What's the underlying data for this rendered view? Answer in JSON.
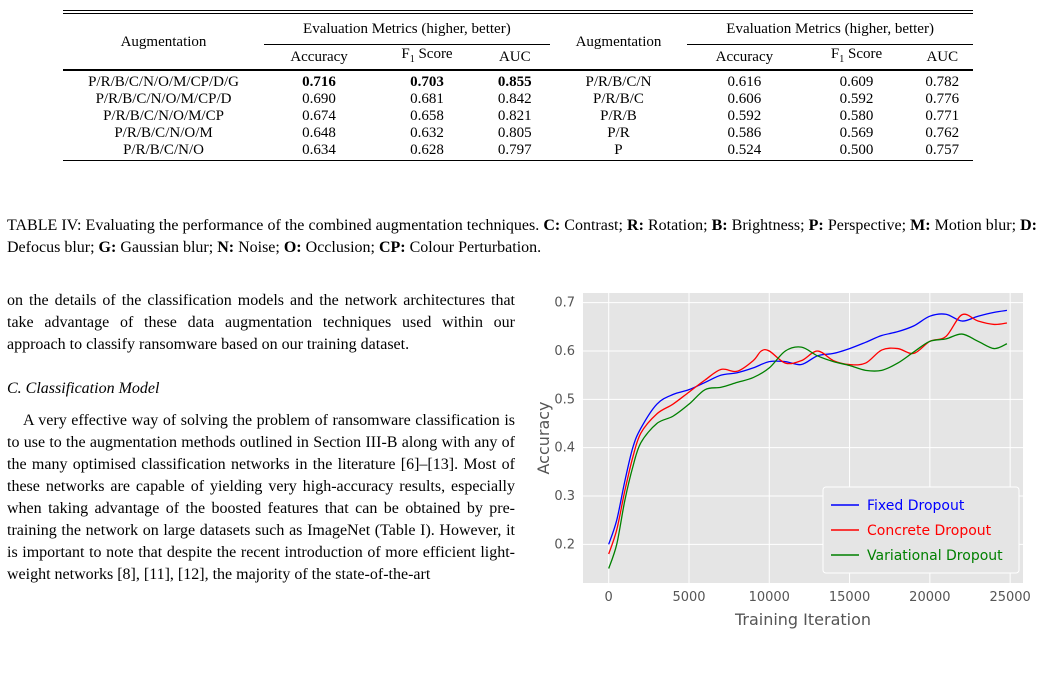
{
  "table": {
    "left_header": "Augmentation",
    "right_header": "Augmentation",
    "group_header_left": "Evaluation Metrics (higher, better)",
    "group_header_right": "Evaluation Metrics (higher, better)",
    "col_accuracy": "Accuracy",
    "col_f1_main": "F",
    "col_f1_sub": "1",
    "col_f1_rest": " Score",
    "col_auc": "AUC",
    "rows": [
      {
        "aug_l": "P/R/B/C/N/O/M/CP/D/G",
        "acc_l": "0.716",
        "f1_l": "0.703",
        "auc_l": "0.855",
        "aug_r": "P/R/B/C/N",
        "acc_r": "0.616",
        "f1_r": "0.609",
        "auc_r": "0.782"
      },
      {
        "aug_l": "P/R/B/C/N/O/M/CP/D",
        "acc_l": "0.690",
        "f1_l": "0.681",
        "auc_l": "0.842",
        "aug_r": "P/R/B/C",
        "acc_r": "0.606",
        "f1_r": "0.592",
        "auc_r": "0.776"
      },
      {
        "aug_l": "P/R/B/C/N/O/M/CP",
        "acc_l": "0.674",
        "f1_l": "0.658",
        "auc_l": "0.821",
        "aug_r": "P/R/B",
        "acc_r": "0.592",
        "f1_r": "0.580",
        "auc_r": "0.771"
      },
      {
        "aug_l": "P/R/B/C/N/O/M",
        "acc_l": "0.648",
        "f1_l": "0.632",
        "auc_l": "0.805",
        "aug_r": "P/R",
        "acc_r": "0.586",
        "f1_r": "0.569",
        "auc_r": "0.762"
      },
      {
        "aug_l": "P/R/B/C/N/O",
        "acc_l": "0.634",
        "f1_l": "0.628",
        "auc_l": "0.797",
        "aug_r": "P",
        "acc_r": "0.524",
        "f1_r": "0.500",
        "auc_r": "0.757"
      }
    ]
  },
  "caption": {
    "prefix": "TABLE IV: Evaluating the performance of the combined augmentation techniques. ",
    "items": [
      {
        "abbr": "C:",
        "name": " Contrast; "
      },
      {
        "abbr": "R:",
        "name": " Rotation; "
      },
      {
        "abbr": "B:",
        "name": " Brightness; "
      },
      {
        "abbr": "P:",
        "name": " Perspective; "
      },
      {
        "abbr": "M:",
        "name": " Motion blur; "
      },
      {
        "abbr": "D:",
        "name": " Defocus blur; "
      },
      {
        "abbr": "G:",
        "name": " Gaussian blur; "
      },
      {
        "abbr": "N:",
        "name": " Noise; "
      },
      {
        "abbr": "O:",
        "name": " Occlusion; "
      },
      {
        "abbr": "CP:",
        "name": " Colour Perturbation."
      }
    ]
  },
  "body": {
    "para1": "on the details of the classification models and the network architectures that take advantage of these data augmentation techniques used within our approach to classify ransomware based on our training dataset.",
    "section_title": "C.  Classification Model",
    "para2": "A very effective way of solving the problem of ransomware classification is to use to the augmentation methods outlined in Section III-B along with any of the many optimised classification networks in the literature [6]–[13]. Most of these networks are capable of yielding very high-accuracy results, especially when taking advantage of the boosted features that can be obtained by pre-training the network on large datasets such as ImageNet (Table I). However, it is important to note that despite the recent introduction of more efficient light-weight networks [8], [11], [12], the majority of the state-of-the-art"
  },
  "chart_data": {
    "type": "line",
    "xlabel": "Training Iteration",
    "ylabel": "Accuracy",
    "xlim": [
      -1600,
      25800
    ],
    "ylim": [
      0.12,
      0.72
    ],
    "xticks": [
      0,
      5000,
      10000,
      15000,
      20000,
      25000
    ],
    "yticks": [
      0.2,
      0.3,
      0.4,
      0.5,
      0.6,
      0.7
    ],
    "grid": true,
    "background": "#e5e5e5",
    "legend_position": "bottom-right",
    "series": [
      {
        "name": "Fixed Dropout",
        "color": "#0000ff",
        "x": [
          0,
          500,
          1000,
          1500,
          2000,
          3000,
          4000,
          5000,
          6000,
          7000,
          8000,
          9000,
          10000,
          11000,
          12000,
          13000,
          14000,
          15000,
          16000,
          17000,
          18000,
          19000,
          20000,
          21000,
          22000,
          23000,
          24000,
          24800
        ],
        "y": [
          0.2,
          0.25,
          0.33,
          0.4,
          0.44,
          0.49,
          0.51,
          0.52,
          0.535,
          0.55,
          0.555,
          0.565,
          0.578,
          0.578,
          0.572,
          0.59,
          0.595,
          0.605,
          0.618,
          0.632,
          0.64,
          0.652,
          0.672,
          0.676,
          0.662,
          0.672,
          0.68,
          0.684
        ]
      },
      {
        "name": "Concrete Dropout",
        "color": "#ff0000",
        "x": [
          0,
          500,
          1000,
          1500,
          2000,
          3000,
          4000,
          5000,
          6000,
          7000,
          8000,
          9000,
          9500,
          10000,
          11000,
          12000,
          13000,
          14000,
          15000,
          16000,
          17000,
          18000,
          19000,
          20000,
          21000,
          22000,
          23000,
          24000,
          24800
        ],
        "y": [
          0.18,
          0.23,
          0.31,
          0.38,
          0.43,
          0.47,
          0.49,
          0.515,
          0.54,
          0.562,
          0.558,
          0.58,
          0.6,
          0.6,
          0.575,
          0.58,
          0.6,
          0.58,
          0.572,
          0.575,
          0.602,
          0.605,
          0.595,
          0.62,
          0.63,
          0.675,
          0.662,
          0.655,
          0.658
        ]
      },
      {
        "name": "Variational Dropout",
        "color": "#008000",
        "x": [
          0,
          500,
          1000,
          1500,
          2000,
          3000,
          4000,
          5000,
          6000,
          7000,
          8000,
          9000,
          10000,
          11000,
          12000,
          13000,
          14000,
          15000,
          16000,
          17000,
          18000,
          19000,
          20000,
          21000,
          22000,
          23000,
          24000,
          24800
        ],
        "y": [
          0.15,
          0.2,
          0.29,
          0.36,
          0.41,
          0.45,
          0.465,
          0.49,
          0.52,
          0.525,
          0.535,
          0.545,
          0.565,
          0.6,
          0.608,
          0.59,
          0.578,
          0.57,
          0.56,
          0.56,
          0.575,
          0.598,
          0.62,
          0.625,
          0.635,
          0.62,
          0.605,
          0.615
        ]
      }
    ]
  }
}
